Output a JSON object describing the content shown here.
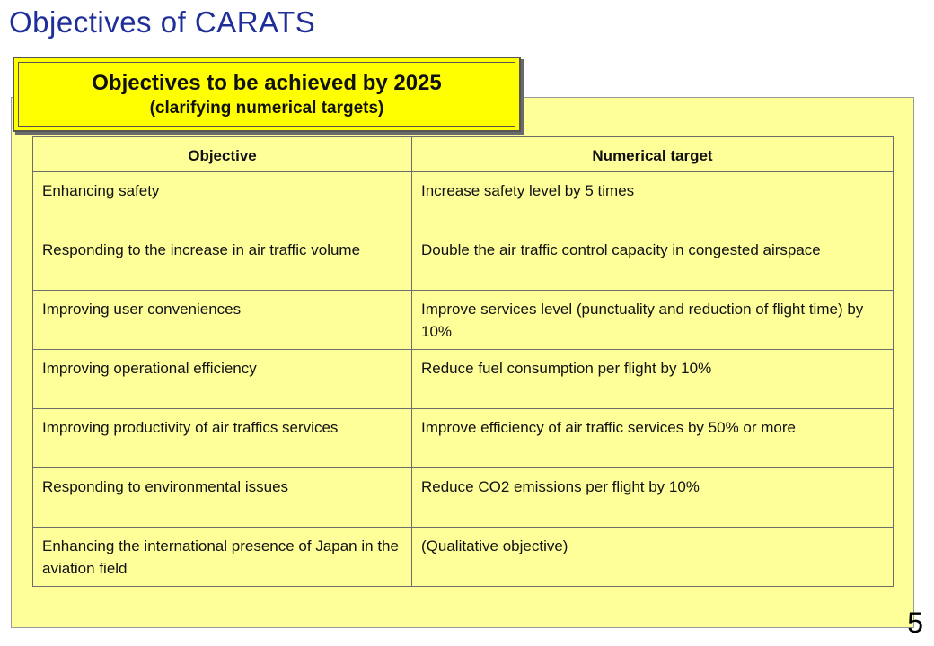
{
  "slide": {
    "title": "Objectives of CARATS",
    "page_number": "5"
  },
  "callout": {
    "title": "Objectives to be achieved by 2025",
    "subtitle": "(clarifying numerical targets)"
  },
  "table": {
    "headers": [
      "Objective",
      "Numerical target"
    ],
    "rows": [
      [
        "Enhancing safety",
        "Increase safety level by 5 times"
      ],
      [
        "Responding to the increase in air traffic volume",
        "Double the air traffic control capacity in congested airspace"
      ],
      [
        "Improving user conveniences",
        "Improve services level (punctuality and reduction of flight time) by 10%"
      ],
      [
        "Improving operational efficiency",
        "Reduce fuel consumption per flight by 10%"
      ],
      [
        "Improving productivity of air traffics services",
        "Improve efficiency of air traffic services by 50% or more"
      ],
      [
        "Responding to environmental issues",
        "Reduce CO2 emissions per flight by 10%"
      ],
      [
        "Enhancing the international presence of Japan in the aviation field",
        "(Qualitative objective)"
      ]
    ]
  },
  "colors": {
    "title_blue": "#1f2f99",
    "panel_yellow": "#ffff99",
    "callout_yellow": "#ffff00"
  }
}
